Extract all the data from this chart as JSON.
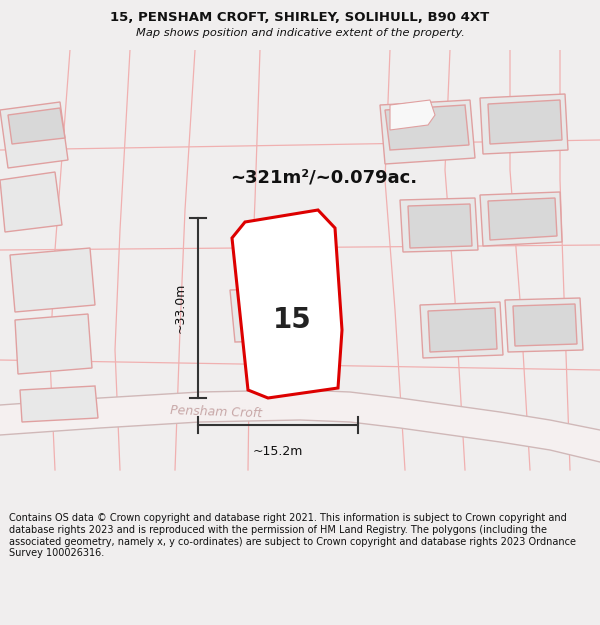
{
  "title_line1": "15, PENSHAM CROFT, SHIRLEY, SOLIHULL, B90 4XT",
  "title_line2": "Map shows position and indicative extent of the property.",
  "area_label": "~321m²/~0.079ac.",
  "property_number": "15",
  "dim_vertical": "~33.0m",
  "dim_horizontal": "~15.2m",
  "street_name": "Pensham Croft",
  "footer_text": "Contains OS data © Crown copyright and database right 2021. This information is subject to Crown copyright and database rights 2023 and is reproduced with the permission of HM Land Registry. The polygons (including the associated geometry, namely x, y co-ordinates) are subject to Crown copyright and database rights 2023 Ordnance Survey 100026316.",
  "map_bg": "#ffffff",
  "building_fill": "#e8e8e8",
  "building_edge": "#e0a0a0",
  "plot_line_color": "#f0b0b0",
  "property_outline_color": "#dd0000",
  "property_fill": "#ffffff",
  "dim_line_color": "#333333",
  "title_color": "#111111",
  "footer_bg": "#ffffff",
  "street_color": "#d0b0b0"
}
